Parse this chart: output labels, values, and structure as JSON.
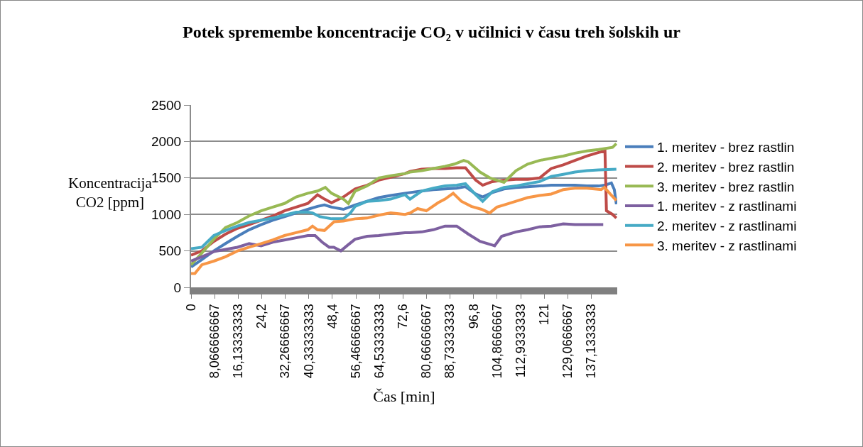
{
  "chart_data": {
    "type": "line",
    "title": "Potek spremembe koncentracije CO₂ v učilnici v času treh šolskih ur",
    "xlabel": "Čas [min]",
    "ylabel": "Koncentracija\nCO2 [ppm]",
    "xlim": [
      0,
      146
    ],
    "ylim": [
      0,
      2500
    ],
    "yticks": [
      0,
      500,
      1000,
      1500,
      2000,
      2500
    ],
    "xticks": [
      0,
      {
        "value": 8.066666667,
        "label": "8,066666667"
      },
      {
        "value": 16.13333333,
        "label": "16,13333333"
      },
      {
        "value": 24.2,
        "label": "24,2"
      },
      {
        "value": 32.26666667,
        "label": "32,26666667"
      },
      {
        "value": 40.33333333,
        "label": "40,33333333"
      },
      {
        "value": 48.4,
        "label": "48,4"
      },
      {
        "value": 56.46666667,
        "label": "56,46666667"
      },
      {
        "value": 64.53333333,
        "label": "64,53333333"
      },
      {
        "value": 72.6,
        "label": "72,6"
      },
      {
        "value": 80.66666667,
        "label": "80,66666667"
      },
      {
        "value": 88.73333333,
        "label": "88,73333333"
      },
      {
        "value": 96.8,
        "label": "96,8"
      },
      {
        "value": 104.8666667,
        "label": "104,8666667"
      },
      {
        "value": 112.9333333,
        "label": "112,9333333"
      },
      {
        "value": 121,
        "label": "121"
      },
      {
        "value": 129.0666667,
        "label": "129,0666667"
      },
      {
        "value": 137.1333333,
        "label": "137,1333333"
      }
    ],
    "grid": "y",
    "legend": "right",
    "marker": "none",
    "line_style": "solid",
    "series": [
      {
        "name": "1. meritev - brez rastlin",
        "color": "#4a7ebb",
        "x": [
          0,
          3.7,
          7.8,
          11.8,
          15.9,
          19.9,
          24,
          28,
          32,
          36,
          40,
          43.3,
          45.7,
          48.1,
          52.2,
          56.2,
          60.3,
          64.3,
          68.4,
          73.3,
          75,
          79,
          83,
          87,
          91,
          94,
          97.5,
          99.9,
          103.2,
          107.2,
          111.3,
          115.3,
          119.4,
          123.4,
          127.5,
          131.5,
          135.6,
          139.6,
          141.6,
          144,
          145,
          145.7
        ],
        "values": [
          280,
          380,
          500,
          600,
          700,
          790,
          860,
          920,
          970,
          1020,
          1070,
          1110,
          1130,
          1100,
          1070,
          1130,
          1180,
          1230,
          1260,
          1290,
          1300,
          1320,
          1340,
          1350,
          1360,
          1380,
          1280,
          1240,
          1300,
          1350,
          1370,
          1380,
          1390,
          1400,
          1400,
          1400,
          1390,
          1390,
          1400,
          1430,
          1340,
          1140
        ]
      },
      {
        "name": "2. meritev - brez rastlin",
        "color": "#be4b48",
        "x": [
          0,
          3.7,
          7.8,
          11.8,
          15.9,
          19.9,
          24,
          28,
          32,
          36,
          40,
          43.3,
          45.7,
          48.1,
          52.2,
          56.2,
          60.3,
          64.3,
          68.4,
          73.3,
          75,
          79,
          83,
          87,
          91,
          94,
          97.5,
          99.9,
          103.2,
          107.2,
          111.3,
          115.3,
          119.4,
          123.4,
          127.5,
          131.5,
          135.6,
          139.6,
          141.8,
          142.3,
          144.4,
          145.7
        ],
        "values": [
          440,
          500,
          630,
          730,
          810,
          860,
          920,
          980,
          1050,
          1100,
          1150,
          1270,
          1210,
          1160,
          1240,
          1350,
          1400,
          1470,
          1510,
          1560,
          1590,
          1620,
          1630,
          1630,
          1640,
          1640,
          1470,
          1400,
          1450,
          1470,
          1480,
          1480,
          1500,
          1630,
          1680,
          1740,
          1800,
          1850,
          1870,
          1050,
          1000,
          950
        ]
      },
      {
        "name": "3. meritev - brez rastlin",
        "color": "#98b954",
        "x": [
          0,
          3.7,
          7.8,
          11.8,
          15.9,
          19.9,
          24,
          28,
          32,
          36,
          40,
          43.3,
          46,
          48.1,
          52.2,
          53.9,
          56.2,
          60.3,
          64.3,
          68.4,
          73.3,
          75,
          79,
          83,
          87,
          90.2,
          93.4,
          95,
          99,
          102.4,
          107.2,
          111.3,
          115.3,
          119.4,
          123.4,
          127.5,
          131.5,
          135.6,
          139.6,
          144.4,
          145.7
        ],
        "values": [
          310,
          470,
          660,
          820,
          890,
          980,
          1050,
          1100,
          1150,
          1240,
          1290,
          1320,
          1370,
          1290,
          1210,
          1150,
          1320,
          1390,
          1500,
          1530,
          1560,
          1580,
          1600,
          1630,
          1660,
          1690,
          1740,
          1720,
          1580,
          1500,
          1440,
          1600,
          1690,
          1740,
          1770,
          1800,
          1840,
          1870,
          1890,
          1920,
          1970
        ]
      },
      {
        "name": "1. meritev - z rastlinami",
        "color": "#7d60a0",
        "x": [
          0,
          3.7,
          7.8,
          11.8,
          15.9,
          19.9,
          24,
          28,
          32,
          36,
          40,
          42.5,
          44.9,
          47.3,
          48.9,
          51.3,
          53.7,
          56.2,
          60.3,
          64.3,
          68.4,
          73.3,
          75,
          79,
          83,
          87,
          91,
          95,
          99,
          103.2,
          104,
          106.4,
          111.3,
          115.3,
          119.4,
          123.4,
          127.5,
          131.5,
          135.6,
          139.6,
          141.2
        ],
        "values": [
          360,
          420,
          490,
          520,
          550,
          600,
          570,
          620,
          650,
          680,
          710,
          710,
          620,
          550,
          550,
          500,
          580,
          660,
          700,
          710,
          730,
          750,
          750,
          760,
          790,
          840,
          840,
          730,
          630,
          580,
          570,
          700,
          760,
          790,
          830,
          840,
          870,
          860,
          860,
          860,
          860
        ]
      },
      {
        "name": "2. meritev - z rastlinami",
        "color": "#46aac5",
        "x": [
          0,
          3.7,
          7.8,
          11.8,
          15.9,
          19.9,
          24,
          28,
          32,
          36,
          40,
          41.6,
          44.1,
          48.1,
          52.2,
          54.6,
          56.2,
          60.3,
          64.3,
          68.4,
          73.3,
          75,
          79,
          83,
          87,
          91,
          94,
          97.5,
          99.9,
          103.2,
          107.2,
          111.3,
          115.3,
          119.4,
          123.4,
          127.5,
          131.5,
          135.6,
          139.6,
          145.7
        ],
        "values": [
          530,
          550,
          710,
          780,
          840,
          890,
          920,
          950,
          990,
          1030,
          1030,
          1020,
          970,
          940,
          940,
          1020,
          1110,
          1180,
          1190,
          1210,
          1270,
          1210,
          1320,
          1360,
          1390,
          1400,
          1420,
          1270,
          1180,
          1310,
          1370,
          1390,
          1420,
          1450,
          1520,
          1550,
          1580,
          1600,
          1610,
          1620
        ]
      },
      {
        "name": "3. meritev - z rastlinami",
        "color": "#f79646",
        "x": [
          0,
          1.3,
          3.7,
          7.8,
          11.8,
          15.9,
          19.9,
          24,
          28,
          32,
          36,
          40,
          41.6,
          43.3,
          45.7,
          49,
          52.2,
          56.2,
          60.3,
          64.3,
          68.4,
          73.3,
          75,
          77.6,
          80.6,
          84.6,
          87,
          89.8,
          92.6,
          96,
          99.5,
          102.3,
          104.8,
          107.2,
          111.3,
          115.3,
          119.4,
          123.4,
          127.5,
          131.5,
          135.6,
          140.5,
          141.6,
          143.6,
          145.7
        ],
        "values": [
          190,
          190,
          310,
          360,
          420,
          500,
          550,
          600,
          650,
          710,
          750,
          790,
          840,
          790,
          780,
          900,
          910,
          940,
          950,
          990,
          1020,
          1000,
          1020,
          1080,
          1050,
          1160,
          1210,
          1290,
          1180,
          1110,
          1070,
          1020,
          1100,
          1130,
          1180,
          1230,
          1260,
          1280,
          1340,
          1360,
          1360,
          1340,
          1370,
          1280,
          1190
        ]
      }
    ]
  }
}
